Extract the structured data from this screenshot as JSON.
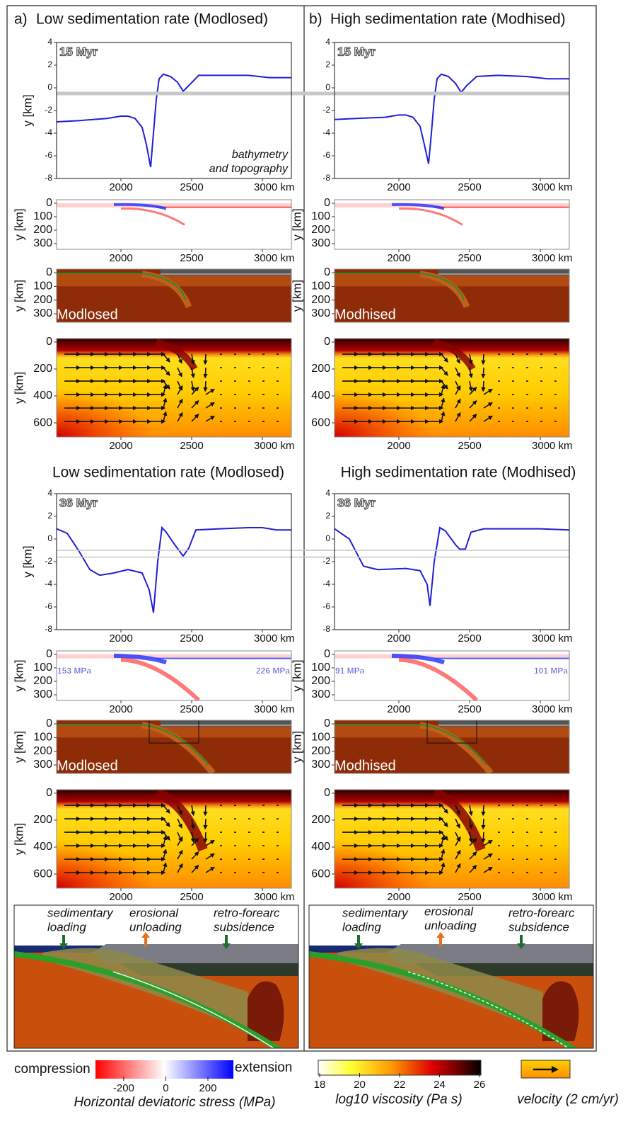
{
  "figure": {
    "panels": [
      {
        "letter": "a)",
        "title": "Low sedimentation rate (Modlosed)"
      },
      {
        "letter": "b)",
        "title": "High sedimentation rate (Modhised)"
      }
    ],
    "titles_36": [
      "Low sedimentation rate (Modlosed)",
      "High sedimentation rate (Modhised)"
    ],
    "schematic_labels": [
      [
        "sedimentary",
        "loading"
      ],
      [
        "erosional",
        "unloading"
      ],
      [
        "retro-forearc",
        "subsidence"
      ]
    ]
  },
  "colorbars": {
    "stress": {
      "left": "compression",
      "right": "extension",
      "lim": [
        -334,
        321
      ],
      "ticks": [
        -200,
        0,
        200
      ],
      "label": "Horizontal deviatoric stress (MPa)"
    },
    "viscosity": {
      "lim": [
        18,
        26
      ],
      "ticks": [
        18,
        20,
        22,
        24,
        26
      ],
      "label": "log10 viscosity (Pa s)"
    },
    "velocity": {
      "label": "velocity (2 cm/yr)"
    }
  },
  "chart_data": [
    {
      "type": "line",
      "label": "15 Myr",
      "note": [
        "bathymetry",
        "and topography"
      ],
      "ylabel": "y [km]",
      "x": [
        1545,
        1700,
        1900,
        2000,
        2050,
        2100,
        2150,
        2180,
        2210,
        2230,
        2250,
        2270,
        2300,
        2350,
        2400,
        2440,
        2480,
        2550,
        2700,
        2900,
        3050,
        3205
      ],
      "values": [
        -3.0,
        -2.9,
        -2.7,
        -2.5,
        -2.5,
        -2.7,
        -3.5,
        -5.0,
        -7.0,
        -4.0,
        -1.0,
        0.8,
        1.2,
        1.0,
        0.5,
        -0.3,
        0.2,
        1.1,
        1.1,
        1.1,
        0.9,
        0.9
      ],
      "color": "#1f1fd6",
      "xlim": [
        1545,
        3205
      ],
      "ylim": [
        -8,
        4
      ],
      "yticks": [
        -8,
        -6,
        -4,
        -2,
        0,
        2,
        4
      ],
      "xticks": [
        2000,
        2500,
        {
          "value": 3000,
          "label": "3000 km"
        }
      ],
      "hlines": [
        -0.5
      ]
    },
    {
      "type": "field",
      "field": "stress",
      "ylabel": "y [km]",
      "xlim": [
        1545,
        3205
      ],
      "ylim": [
        342,
        -26
      ],
      "yticks": [
        0,
        100,
        200,
        300
      ],
      "xticks": [
        2000,
        2500,
        {
          "value": 3000,
          "label": "3000 km"
        }
      ]
    },
    {
      "type": "field",
      "field": "composition",
      "label": "Modlosed",
      "ylabel": "y [km]",
      "xlim": [
        1545,
        3205
      ],
      "ylim": [
        362,
        -26
      ],
      "yticks": [
        0,
        100,
        200,
        300
      ]
    },
    {
      "type": "field",
      "field": "viscosity",
      "ylabel": "y [km]",
      "xlim": [
        1545,
        3205
      ],
      "ylim": [
        705,
        -26
      ],
      "yticks": [
        0,
        200,
        400,
        600
      ],
      "xticks": [
        2000,
        2500,
        {
          "value": 3000,
          "label": "3000 km"
        }
      ]
    },
    {
      "type": "line",
      "label": "15 Myr",
      "x": [
        1545,
        1700,
        1900,
        2000,
        2050,
        2100,
        2150,
        2180,
        2210,
        2230,
        2250,
        2270,
        2300,
        2350,
        2400,
        2440,
        2480,
        2550,
        2700,
        2900,
        3050,
        3205
      ],
      "values": [
        -2.8,
        -2.7,
        -2.6,
        -2.4,
        -2.4,
        -2.6,
        -3.4,
        -5.0,
        -6.7,
        -4.0,
        -1.0,
        0.8,
        1.2,
        1.0,
        0.4,
        -0.4,
        0.2,
        1.0,
        1.1,
        1.0,
        0.8,
        0.8
      ],
      "color": "#1f1fd6",
      "xlim": [
        1545,
        3205
      ],
      "ylim": [
        -8,
        4
      ],
      "yticks": [
        -8,
        -6,
        -4,
        -2,
        0,
        2,
        4
      ],
      "xticks": [
        2000,
        2500,
        {
          "value": 3000,
          "label": "3000 km"
        }
      ],
      "hlines": [
        -0.5
      ]
    },
    {
      "type": "field",
      "field": "stress",
      "ylabel": "y [km]",
      "xlim": [
        1545,
        3205
      ],
      "ylim": [
        342,
        -26
      ],
      "yticks": [
        0,
        100,
        200,
        300
      ],
      "xticks": [
        2000,
        2500,
        {
          "value": 3000,
          "label": "3000 km"
        }
      ]
    },
    {
      "type": "field",
      "field": "composition",
      "label": "Modhised",
      "ylabel": "y [km]",
      "xlim": [
        1545,
        3205
      ],
      "ylim": [
        362,
        -26
      ],
      "yticks": [
        0,
        100,
        200,
        300
      ]
    },
    {
      "type": "field",
      "field": "viscosity",
      "xlim": [
        1545,
        3205
      ],
      "ylim": [
        705,
        -26
      ],
      "yticks": [
        0,
        200,
        400,
        600
      ],
      "xticks": [
        2000,
        2500,
        {
          "value": 3000,
          "label": "3000 km"
        }
      ]
    },
    {
      "type": "line",
      "label": "36 Myr",
      "ylabel": "y [km]",
      "x": [
        1545,
        1620,
        1700,
        1780,
        1850,
        1950,
        2050,
        2150,
        2200,
        2230,
        2260,
        2290,
        2320,
        2380,
        2440,
        2480,
        2530,
        2700,
        2900,
        3000,
        3100,
        3205
      ],
      "values": [
        0.9,
        0.5,
        -1.0,
        -2.7,
        -3.2,
        -3.0,
        -2.7,
        -3.0,
        -4.5,
        -6.5,
        -2.0,
        1.0,
        0.6,
        -0.5,
        -1.5,
        -0.8,
        0.8,
        0.9,
        1.0,
        1.0,
        0.8,
        0.8
      ],
      "color": "#1f1fd6",
      "xlim": [
        1545,
        3205
      ],
      "ylim": [
        -8,
        4
      ],
      "yticks": [
        -8,
        -6,
        -4,
        -2,
        0,
        2,
        4
      ],
      "xticks": [
        2000,
        2500,
        {
          "value": 3000,
          "label": "3000 km"
        }
      ],
      "hlines": [
        -1,
        -1.6
      ]
    },
    {
      "type": "field",
      "field": "stress",
      "annotations": [
        "153 MPa",
        "226 MPa"
      ],
      "ylabel": "y [km]",
      "xlim": [
        1545,
        3205
      ],
      "ylim": [
        342,
        -26
      ],
      "yticks": [
        0,
        100,
        200,
        300
      ],
      "xticks": [
        2000,
        2500,
        {
          "value": 3000,
          "label": "3000 km"
        }
      ]
    },
    {
      "type": "field",
      "field": "composition",
      "label": "Modlosed",
      "ylabel": "y [km]",
      "xlim": [
        1545,
        3205
      ],
      "ylim": [
        362,
        -26
      ],
      "yticks": [
        0,
        100,
        200,
        300
      ]
    },
    {
      "type": "field",
      "field": "viscosity",
      "ylabel": "y [km]",
      "xlim": [
        1545,
        3205
      ],
      "ylim": [
        705,
        -26
      ],
      "yticks": [
        0,
        200,
        400,
        600
      ],
      "xticks": [
        2000,
        2500,
        {
          "value": 3000,
          "label": "3000 km"
        }
      ]
    },
    {
      "type": "line",
      "label": "36 Myr",
      "x": [
        1545,
        1650,
        1750,
        1850,
        2050,
        2150,
        2200,
        2220,
        2250,
        2290,
        2330,
        2400,
        2430,
        2470,
        2510,
        2600,
        2800,
        3000,
        3205
      ],
      "values": [
        0.9,
        0.0,
        -2.4,
        -2.7,
        -2.6,
        -2.8,
        -4.0,
        -5.9,
        -2.0,
        1.0,
        0.7,
        -0.5,
        -0.9,
        -0.9,
        0.6,
        0.9,
        0.9,
        0.9,
        0.8
      ],
      "color": "#1f1fd6",
      "xlim": [
        1545,
        3205
      ],
      "ylim": [
        -8,
        4
      ],
      "yticks": [
        -8,
        -6,
        -4,
        -2,
        0,
        2,
        4
      ],
      "xticks": [
        2000,
        2500,
        {
          "value": 3000,
          "label": "3000 km"
        }
      ],
      "hlines": [
        -1,
        -1.6
      ]
    },
    {
      "type": "field",
      "field": "stress",
      "annotations": [
        "91 MPa",
        "101 MPa"
      ],
      "ylabel": "y [km]",
      "xlim": [
        1545,
        3205
      ],
      "ylim": [
        342,
        -26
      ],
      "yticks": [
        0,
        100,
        200,
        300
      ],
      "xticks": [
        2000,
        2500,
        {
          "value": 3000,
          "label": "3000 km"
        }
      ]
    },
    {
      "type": "field",
      "field": "composition",
      "label": "Modhised",
      "ylabel": "y [km]",
      "xlim": [
        1545,
        3205
      ],
      "ylim": [
        362,
        -26
      ],
      "yticks": [
        0,
        100,
        200,
        300
      ]
    },
    {
      "type": "field",
      "field": "viscosity",
      "xlim": [
        1545,
        3205
      ],
      "ylim": [
        705,
        -26
      ],
      "yticks": [
        0,
        200,
        400,
        600
      ],
      "xticks": [
        2000,
        2500,
        {
          "value": 3000,
          "label": "3000 km"
        }
      ]
    }
  ]
}
